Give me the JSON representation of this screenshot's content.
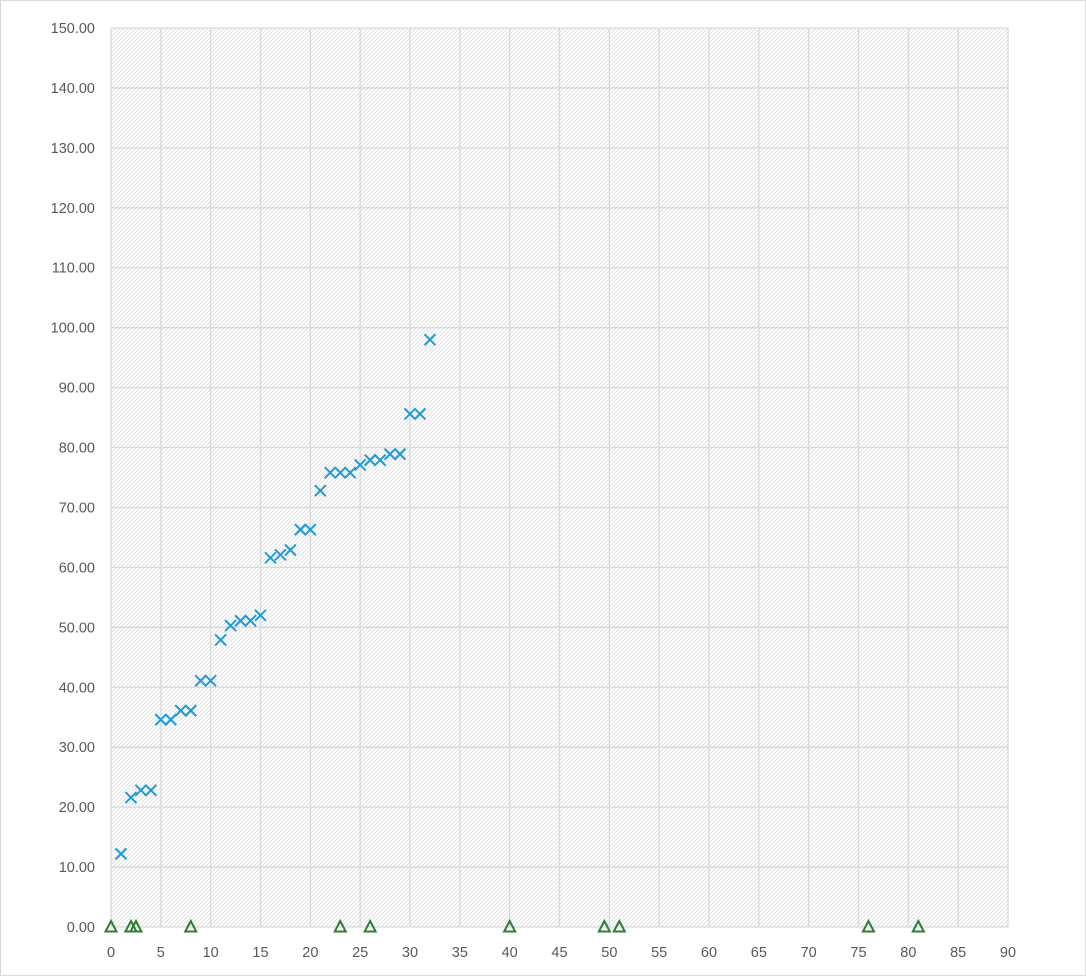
{
  "chart_data": {
    "type": "scatter",
    "title": "",
    "xlabel": "",
    "ylabel": "",
    "xlim": [
      0,
      90
    ],
    "ylim": [
      0,
      150
    ],
    "x_ticks": [
      "0",
      "5",
      "10",
      "15",
      "20",
      "25",
      "30",
      "35",
      "40",
      "45",
      "50",
      "55",
      "60",
      "65",
      "70",
      "75",
      "80",
      "85",
      "90"
    ],
    "y_ticks": [
      "0.00",
      "10.00",
      "20.00",
      "30.00",
      "40.00",
      "50.00",
      "60.00",
      "70.00",
      "80.00",
      "90.00",
      "100.00",
      "110.00",
      "120.00",
      "130.00",
      "140.00",
      "150.00"
    ],
    "grid": true,
    "legend": "none",
    "series": [
      {
        "marker": "x",
        "color": "#1f9bd7",
        "points": [
          [
            1,
            12.2
          ],
          [
            2,
            21.6
          ],
          [
            3,
            22.8
          ],
          [
            4,
            22.8
          ],
          [
            5,
            34.6
          ],
          [
            6,
            34.6
          ],
          [
            7,
            36.1
          ],
          [
            8,
            36.1
          ],
          [
            9,
            41.1
          ],
          [
            10,
            41.1
          ],
          [
            11,
            47.9
          ],
          [
            12,
            50.3
          ],
          [
            13,
            51.1
          ],
          [
            14,
            51.1
          ],
          [
            15,
            52.0
          ],
          [
            16,
            61.6
          ],
          [
            17,
            62.1
          ],
          [
            18,
            62.9
          ],
          [
            19,
            66.3
          ],
          [
            20,
            66.3
          ],
          [
            21,
            72.8
          ],
          [
            22,
            75.8
          ],
          [
            23,
            75.8
          ],
          [
            24,
            75.8
          ],
          [
            25,
            77.1
          ],
          [
            26,
            77.9
          ],
          [
            27,
            77.9
          ],
          [
            28,
            78.9
          ],
          [
            29,
            78.9
          ],
          [
            30,
            85.6
          ],
          [
            31,
            85.6
          ],
          [
            32,
            98.0
          ]
        ]
      },
      {
        "marker": "triangle",
        "color": "#2e7d32",
        "points": [
          [
            0,
            0
          ],
          [
            2,
            0
          ],
          [
            2.5,
            0
          ],
          [
            8,
            0
          ],
          [
            23,
            0
          ],
          [
            26,
            0
          ],
          [
            40,
            0
          ],
          [
            49.5,
            0
          ],
          [
            51,
            0
          ],
          [
            76,
            0
          ],
          [
            81,
            0
          ]
        ]
      }
    ]
  }
}
